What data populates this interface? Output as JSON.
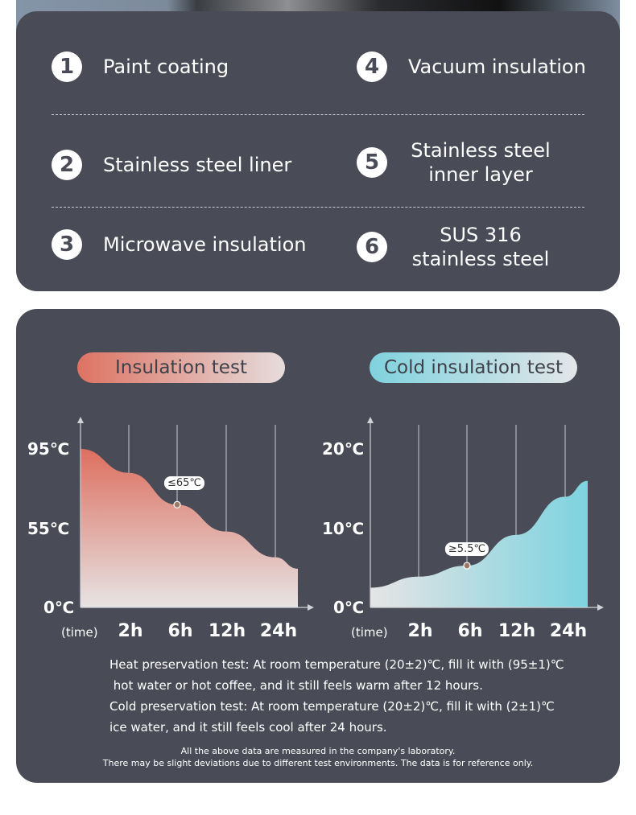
{
  "features": [
    {
      "num": "1",
      "label": "Paint coating"
    },
    {
      "num": "2",
      "label": "Stainless steel liner"
    },
    {
      "num": "3",
      "label": "Microwave insulation"
    },
    {
      "num": "4",
      "label": "Vacuum insulation"
    },
    {
      "num": "5",
      "label": "Stainless steel",
      "label2": "inner layer"
    },
    {
      "num": "6",
      "label": "SUS 316",
      "label2": "stainless steel"
    }
  ],
  "colors": {
    "card": "#494c56",
    "heat": "#dd6f5f",
    "cold": "#7dd3df",
    "light": "#e6e4e4"
  },
  "chart_data": [
    {
      "type": "area",
      "title": "Insulation test",
      "xlabel": "(time)",
      "x_ticks": [
        "2h",
        "6h",
        "12h",
        "24h"
      ],
      "y_ticks": [
        "0℃",
        "55℃",
        "95℃"
      ],
      "y_tick_values": [
        0,
        55,
        95
      ],
      "x_hours": [
        0,
        2,
        6,
        12,
        24,
        30
      ],
      "values": [
        95,
        83,
        67,
        53,
        35,
        27
      ],
      "annotation": {
        "x": 6,
        "value": 67,
        "text": "≤65℃"
      }
    },
    {
      "type": "area",
      "title": "Cold insulation test",
      "xlabel": "(time)",
      "x_ticks": [
        "2h",
        "6h",
        "12h",
        "24h"
      ],
      "y_ticks": [
        "0℃",
        "10℃",
        "20℃"
      ],
      "y_tick_values": [
        0,
        10,
        20
      ],
      "x_hours": [
        0,
        2,
        6,
        12,
        24,
        30
      ],
      "values": [
        2.5,
        3.9,
        5.3,
        9.2,
        14,
        16
      ],
      "annotation": {
        "x": 6,
        "value": 5.3,
        "text": "≥5.5℃"
      }
    }
  ],
  "notes": [
    "Heat preservation test: At room temperature (20±2)℃, fill it with (95±1)℃",
    " hot water or hot coffee, and it still feels warm after 12 hours.",
    "Cold preservation test: At room temperature (20±2)℃, fill it with (2±1)℃",
    "ice water, and it still feels cool after 24 hours."
  ],
  "disclaimer": [
    "All the above data are measured in the company's laboratory.",
    "There may be slight deviations due to different test environments. The data is for reference only."
  ]
}
